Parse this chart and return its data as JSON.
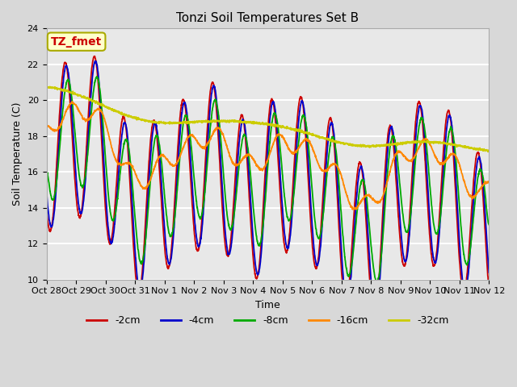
{
  "title": "Tonzi Soil Temperatures Set B",
  "xlabel": "Time",
  "ylabel": "Soil Temperature (C)",
  "ylim": [
    10,
    24
  ],
  "num_days": 15,
  "series_labels": [
    "-2cm",
    "-4cm",
    "-8cm",
    "-16cm",
    "-32cm"
  ],
  "series_colors": [
    "#cc0000",
    "#0000cc",
    "#00aa00",
    "#ff8800",
    "#cccc00"
  ],
  "bg_color": "#e8e8e8",
  "fig_bg": "#d8d8d8",
  "grid_color": "#ffffff",
  "annotation_text": "TZ_fmet",
  "annotation_fg": "#cc0000",
  "annotation_bg": "#ffffcc",
  "annotation_border": "#aaaa00",
  "xtick_labels": [
    "Oct 28",
    "Oct 29",
    "Oct 30",
    "Oct 31",
    "Nov 1",
    "Nov 2",
    "Nov 3",
    "Nov 4",
    "Nov 5",
    "Nov 6",
    "Nov 7",
    "Nov 8",
    "Nov 9",
    "Nov 10",
    "Nov 11",
    "Nov 12"
  ],
  "ytick_vals": [
    10,
    12,
    14,
    16,
    18,
    20,
    22,
    24
  ],
  "linewidth": 1.3,
  "title_fontsize": 11,
  "axis_label_fontsize": 9,
  "tick_fontsize": 8,
  "legend_fontsize": 9
}
